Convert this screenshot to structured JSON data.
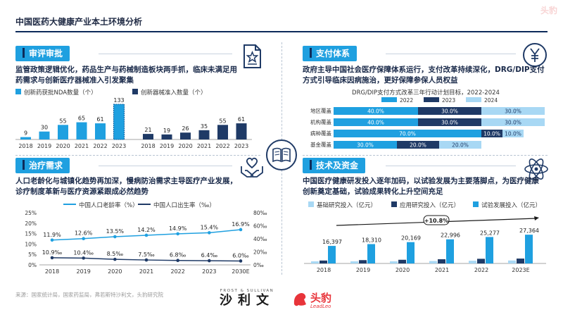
{
  "header": {
    "title": "中国医药大健康产业本土环境分析",
    "watermark": "头豹"
  },
  "footer": {
    "source": "来源：国家统计局，国家药监局，弗若斯特沙利文，头豹研究院",
    "brand1_en": "FROST & SULLIVAN",
    "brand1_cn": "沙利文",
    "brand2_cn": "头豹",
    "brand2_en": "LeadLeo"
  },
  "panels": {
    "review": {
      "tag": "审评审批",
      "desc": "监管政策逻辑优化，药品生产与药械制造板块两手抓，临床未满足用药需求与创新医疗器械准入引发聚集"
    },
    "payment": {
      "tag": "支付体系",
      "desc": "政府主导中国社会医疗保障体系运行，支付改革持续深化，DRG/DIP支付方式引导临床因病施治，更好保障参保人员权益"
    },
    "treatment": {
      "tag": "治疗需求",
      "desc": "人口老龄化与城镇化趋势再加深，慢病防治需求主导医疗产业发展，诊疗制度革新与医疗资源紧跟成必然趋势"
    },
    "tech": {
      "tag": "技术及资金",
      "desc": "中国医疗健康研发投入逐年加码，以试验发展为主要落脚点，为医疗健康创新奠定基础，试验成果转化上升空间充足"
    }
  },
  "chart_data": [
    {
      "type": "bar",
      "id": "review-chart",
      "categories": [
        "2018",
        "2019",
        "2020",
        "2021",
        "2022",
        "2023"
      ],
      "series": [
        {
          "name": "创新药获批NDA数量（个）",
          "values": [
            9,
            30,
            55,
            65,
            61,
            133
          ],
          "color": "#1fa0e0",
          "highlight_last": true
        },
        {
          "name": "创新器械准入数量（个）",
          "values": [
            21,
            19,
            26,
            35,
            55,
            61
          ],
          "color": "#1f3a66"
        }
      ]
    },
    {
      "type": "bar",
      "id": "payment-chart",
      "title": "DRG/DIP支付方式改革三年行动计划目标，2022-2024",
      "legend": [
        "2022",
        "2023",
        "2024"
      ],
      "colors": [
        "#1fa0e0",
        "#1f3a66",
        "#a8d8f4"
      ],
      "rows": [
        {
          "label": "地区覆盖",
          "values": [
            40.0,
            30.0,
            30.0
          ],
          "labels": [
            "40.0%",
            "30.0%",
            "30.0%"
          ]
        },
        {
          "label": "机构覆盖",
          "values": [
            40.0,
            30.0,
            30.0
          ],
          "labels": [
            "40.0%",
            "30.0%",
            "30.0%"
          ]
        },
        {
          "label": "病种覆盖",
          "values": [
            70.0,
            10.0,
            10.0
          ],
          "labels": [
            "70.0%",
            "10.0%",
            "10.0%"
          ]
        },
        {
          "label": "基金覆盖",
          "values": [
            30.0,
            20.0,
            20.0
          ],
          "labels": [
            "30.0%",
            "20.0%",
            "20.0%"
          ]
        }
      ]
    },
    {
      "type": "line",
      "id": "treatment-chart",
      "categories": [
        "2018",
        "2019",
        "2020",
        "2021",
        "2022",
        "2023",
        "2030E"
      ],
      "left_axis_ticks": [
        "0%",
        "5%",
        "10%",
        "15%",
        "20%",
        "25%"
      ],
      "right_axis_ticks": [
        "0‰",
        "20‰",
        "40‰",
        "60‰",
        "80‰"
      ],
      "ylim_left": [
        0,
        25
      ],
      "ylim_right": [
        0,
        80
      ],
      "series": [
        {
          "name": "中国人口老龄率（%）",
          "axis": "left",
          "values": [
            11.9,
            12.6,
            13.5,
            14.2,
            14.9,
            15.4,
            16.9
          ],
          "labels": [
            "11.9%",
            "12.6%",
            "13.5%",
            "14.2%",
            "14.9%",
            "15.4%",
            "16.9%"
          ],
          "color": "#1fa0e0"
        },
        {
          "name": "中国人口出生率（‰）",
          "axis": "right",
          "values": [
            10.9,
            10.4,
            8.5,
            7.5,
            6.8,
            6.4,
            6.0
          ],
          "labels": [
            "10.9‰",
            "10.4‰",
            "8.5‰",
            "7.5‰",
            "6.8‰",
            "6.4‰",
            "6.0‰"
          ],
          "color": "#1f3a66"
        }
      ]
    },
    {
      "type": "bar",
      "id": "tech-chart",
      "categories": [
        "2018",
        "2019",
        "2020",
        "2021",
        "2022",
        "2023E"
      ],
      "annotation": "+10.8%",
      "totals": [
        "16,397",
        "18,310",
        "20,169",
        "22,996",
        "25,277",
        "27,364"
      ],
      "series": [
        {
          "name": "基础研究投入（亿元）",
          "values": [
            1090,
            1336,
            1467,
            1817,
            2023,
            2212
          ],
          "color": "#a8d8f4"
        },
        {
          "name": "应用研究投入（亿元）",
          "values": [
            2191,
            2499,
            2757,
            3145,
            3482,
            3662
          ],
          "color": "#1f3a66"
        },
        {
          "name": "试验发展投入（亿元）",
          "values": [
            13116,
            14475,
            15945,
            18034,
            19772,
            21490
          ],
          "color": "#1fa0e0"
        }
      ]
    }
  ]
}
